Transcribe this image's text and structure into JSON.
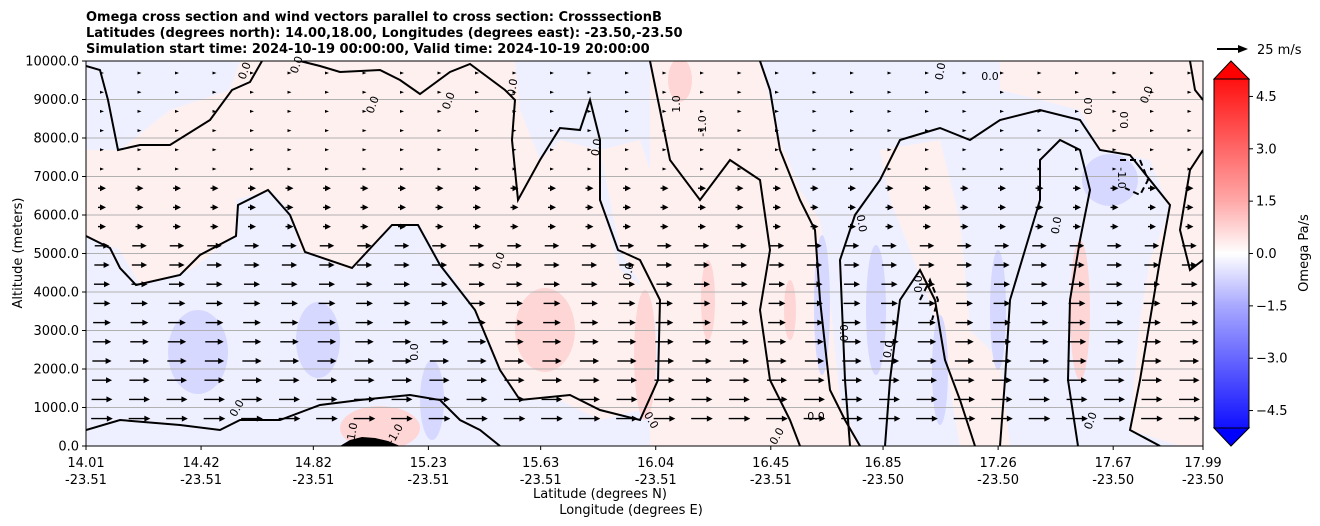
{
  "chart_data": {
    "type": "heatmap",
    "title_lines": [
      "Omega cross section and wind vectors parallel to cross section: CrosssectionB",
      "Latitudes (degrees north): 14.00,18.00, Longitudes (degrees east): -23.50,-23.50",
      "Simulation start time: 2024-10-19 00:00:00, Valid time: 2024-10-19 20:00:00"
    ],
    "xlabel_lines": [
      "Latitude (degrees N)",
      "Longitude (degrees E)"
    ],
    "ylabel": "Altitude (meters)",
    "ylim": [
      0,
      10000
    ],
    "y_ticks": [
      "0.0",
      "1000.0",
      "2000.0",
      "3000.0",
      "4000.0",
      "5000.0",
      "6000.0",
      "7000.0",
      "8000.0",
      "9000.0",
      "10000.0"
    ],
    "y_tick_values": [
      0,
      1000,
      2000,
      3000,
      4000,
      5000,
      6000,
      7000,
      8000,
      9000,
      10000
    ],
    "x_ticks": [
      {
        "lat": "14.01",
        "lon": "-23.51"
      },
      {
        "lat": "14.42",
        "lon": "-23.51"
      },
      {
        "lat": "14.82",
        "lon": "-23.51"
      },
      {
        "lat": "15.23",
        "lon": "-23.51"
      },
      {
        "lat": "15.63",
        "lon": "-23.51"
      },
      {
        "lat": "16.04",
        "lon": "-23.51"
      },
      {
        "lat": "16.45",
        "lon": "-23.51"
      },
      {
        "lat": "16.85",
        "lon": "-23.50"
      },
      {
        "lat": "17.26",
        "lon": "-23.50"
      },
      {
        "lat": "17.67",
        "lon": "-23.50"
      },
      {
        "lat": "17.99",
        "lon": "-23.50"
      }
    ],
    "x_tick_values": [
      14.01,
      14.42,
      14.82,
      15.23,
      15.63,
      16.04,
      16.45,
      16.85,
      17.26,
      17.67,
      17.99
    ],
    "xlim": [
      14.01,
      17.99
    ],
    "colorbar": {
      "label": "Omega Pa/s",
      "range": [
        -5,
        5
      ],
      "ticks": [
        "4.5",
        "3.0",
        "1.5",
        "0.0",
        "−1.5",
        "−3.0",
        "−4.5"
      ],
      "tick_values": [
        4.5,
        3.0,
        1.5,
        0.0,
        -1.5,
        -3.0,
        -4.5
      ],
      "extend": "both"
    },
    "quiver_key": "25 m/s",
    "contour_labels": [
      "0.0",
      "0.0",
      "0.0",
      "0.0",
      "0.0",
      "0.0",
      "0.0",
      "0.0",
      "0.0",
      "0.0",
      "0.0",
      "0.0",
      "0.0",
      "0.0",
      "0.0",
      "0.0",
      "0.0",
      "0.0",
      "0.0",
      "0.0",
      "0.0",
      "0.0",
      "0.0",
      "0.0",
      "1.0",
      "-1.0",
      "-1.0",
      "1.0",
      "-1.0"
    ],
    "grid": "horizontal",
    "colors": {
      "positive": "#ff0000",
      "negative": "#0000ff",
      "contour": "#000000",
      "grid": "#b0b0b0"
    }
  }
}
